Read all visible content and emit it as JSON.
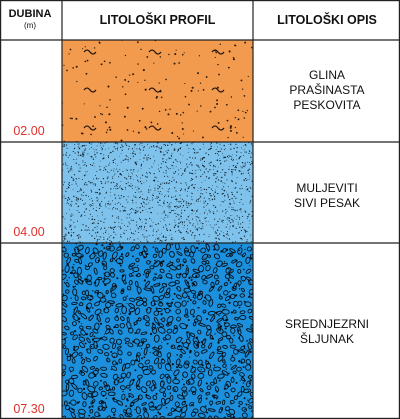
{
  "header": {
    "depth_label": "DUBINA",
    "depth_unit": "(m)",
    "profile_label": "LITOLOŠKI PROFIL",
    "description_label": "LITOLOŠKI OPIS"
  },
  "layers": [
    {
      "bottom_depth": "02.00",
      "description_line1": "GLINA",
      "description_line2": "PRAŠINASTA",
      "description_line3": "PESKOVITA",
      "fill_color": "#f29a4d",
      "pattern": "clay-tilde-dots"
    },
    {
      "bottom_depth": "04.00",
      "description_line1": "MULJEVITI",
      "description_line2": "SIVI PESAK",
      "fill_color": "#7fc3ec",
      "pattern": "fine-sand-dots"
    },
    {
      "bottom_depth": "07.30",
      "description_line1": "SREDNJEZRNI",
      "description_line2": "ŠLJUNAK",
      "fill_color": "#1c90dc",
      "pattern": "gravel-pebbles"
    }
  ],
  "colors": {
    "grid": "#222222",
    "depth_text": "#e0312d"
  }
}
